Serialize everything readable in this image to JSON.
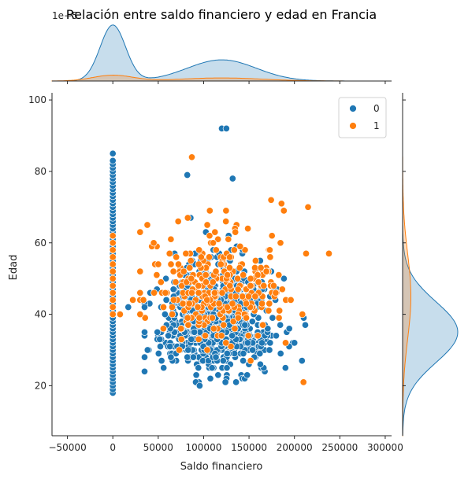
{
  "chart_data": {
    "type": "scatter",
    "title": "Relación entre saldo financiero y edad en Francia",
    "xlabel": "Saldo financiero",
    "ylabel": "Edad",
    "xlim": [
      -67000,
      307000
    ],
    "ylim": [
      6,
      102
    ],
    "x_ticks": [
      "−50000",
      "0",
      "50000",
      "100000",
      "150000",
      "200000",
      "250000",
      "300000"
    ],
    "x_tick_values": [
      -50000,
      0,
      50000,
      100000,
      150000,
      200000,
      250000,
      300000
    ],
    "y_ticks": [
      "20",
      "40",
      "60",
      "80",
      "100"
    ],
    "y_tick_values": [
      20,
      40,
      60,
      80,
      100
    ],
    "top_axis_offset_text": "1e−5",
    "grid": false,
    "legend_position": "upper right",
    "legend": [
      {
        "label": "0",
        "color": "#1f77b4"
      },
      {
        "label": "1",
        "color": "#ff7f0e"
      }
    ],
    "series": [
      {
        "name": "0",
        "color": "#1f77b4",
        "zero_balance_column": {
          "x": 0,
          "ages": [
            18,
            19,
            20,
            21,
            22,
            23,
            24,
            25,
            26,
            27,
            28,
            29,
            30,
            31,
            32,
            33,
            34,
            35,
            36,
            37,
            38,
            39,
            40,
            41,
            42,
            43,
            44,
            45,
            46,
            47,
            48,
            49,
            50,
            51,
            52,
            53,
            54,
            55,
            56,
            57,
            58,
            59,
            60,
            61,
            62,
            63,
            64,
            65,
            66,
            67,
            68,
            69,
            70,
            71,
            72,
            73,
            74,
            75,
            76,
            77,
            78,
            79,
            80,
            81,
            82,
            83,
            85
          ]
        },
        "cluster": {
          "x_mean": 115000,
          "x_sd": 30000,
          "x_range": [
            35000,
            212000
          ],
          "age_mean": 36,
          "age_sd": 9,
          "age_range": [
            18,
            80
          ],
          "n": 900
        },
        "outliers": [
          {
            "x": 120000,
            "y": 92
          },
          {
            "x": 125000,
            "y": 92
          },
          {
            "x": 82000,
            "y": 79
          },
          {
            "x": 132000,
            "y": 78
          },
          {
            "x": 212000,
            "y": 37
          },
          {
            "x": 17000,
            "y": 42
          },
          {
            "x": 35000,
            "y": 24
          }
        ]
      },
      {
        "name": "1",
        "color": "#ff7f0e",
        "zero_balance_column": {
          "x": 0,
          "ages": [
            40,
            42,
            44,
            46,
            48,
            50,
            52,
            54,
            56,
            58,
            60,
            62
          ]
        },
        "cluster": {
          "x_mean": 118000,
          "x_sd": 40000,
          "x_range": [
            30000,
            215000
          ],
          "age_mean": 46,
          "age_sd": 10,
          "age_range": [
            20,
            76
          ],
          "n": 280
        },
        "outliers": [
          {
            "x": 87000,
            "y": 84
          },
          {
            "x": 238000,
            "y": 57
          },
          {
            "x": 210000,
            "y": 21
          },
          {
            "x": 38000,
            "y": 65
          },
          {
            "x": 45000,
            "y": 60
          },
          {
            "x": 22000,
            "y": 44
          },
          {
            "x": 8000,
            "y": 40
          }
        ]
      }
    ],
    "marginal_x": {
      "density_0_peaks": [
        {
          "x": 0,
          "height": 1.45
        },
        {
          "x": 120000,
          "height": 0.55
        }
      ],
      "density_1_peaks": [
        {
          "x": 0,
          "height": 0.15
        },
        {
          "x": 120000,
          "height": 0.08
        }
      ]
    },
    "marginal_y": {
      "density_0_peaks": [
        {
          "y": 35,
          "height": 1.0
        }
      ],
      "density_1_peaks": [
        {
          "y": 45,
          "height": 0.15
        }
      ]
    }
  }
}
